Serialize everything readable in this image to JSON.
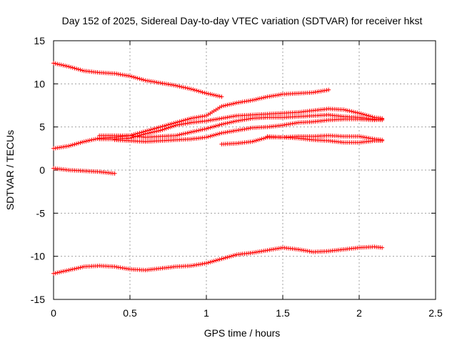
{
  "chart_data": {
    "type": "scatter",
    "title": "Day 152 of 2025, Sidereal Day-to-day VTEC variation (SDTVAR) for receiver hkst",
    "xlabel": "GPS time / hours",
    "ylabel": "SDTVAR / TECUs",
    "xlim": [
      0,
      2.5
    ],
    "ylim": [
      -15,
      15
    ],
    "xticks": [
      0,
      0.5,
      1,
      1.5,
      2,
      2.5
    ],
    "xtick_labels": [
      "0",
      "0.5",
      "1",
      "1.5",
      "2",
      "2.5"
    ],
    "yticks": [
      -15,
      -10,
      -5,
      0,
      5,
      10,
      15
    ],
    "ytick_labels": [
      "-15",
      "-10",
      "-5",
      "0",
      "5",
      "10",
      "15"
    ],
    "grid": true,
    "marker": "+",
    "color": "#ff0000",
    "series": [
      {
        "name": "track-1",
        "points": [
          [
            0,
            12.4
          ],
          [
            0.1,
            12.0
          ],
          [
            0.2,
            11.5
          ],
          [
            0.3,
            11.3
          ],
          [
            0.4,
            11.2
          ],
          [
            0.5,
            10.9
          ],
          [
            0.6,
            10.4
          ],
          [
            0.7,
            10.1
          ],
          [
            0.8,
            9.8
          ],
          [
            0.9,
            9.4
          ],
          [
            1.0,
            8.9
          ],
          [
            1.1,
            8.5
          ]
        ]
      },
      {
        "name": "track-2",
        "points": [
          [
            0,
            0.2
          ],
          [
            0.1,
            0.0
          ],
          [
            0.2,
            -0.1
          ],
          [
            0.3,
            -0.2
          ],
          [
            0.4,
            -0.4
          ]
        ]
      },
      {
        "name": "track-3",
        "points": [
          [
            0,
            -12.0
          ],
          [
            0.1,
            -11.6
          ],
          [
            0.2,
            -11.2
          ],
          [
            0.3,
            -11.1
          ],
          [
            0.4,
            -11.2
          ],
          [
            0.5,
            -11.5
          ],
          [
            0.6,
            -11.6
          ],
          [
            0.7,
            -11.4
          ],
          [
            0.8,
            -11.2
          ],
          [
            0.9,
            -11.1
          ],
          [
            1.0,
            -10.8
          ],
          [
            1.1,
            -10.3
          ],
          [
            1.2,
            -9.8
          ],
          [
            1.3,
            -9.6
          ],
          [
            1.4,
            -9.3
          ],
          [
            1.5,
            -9.0
          ],
          [
            1.6,
            -9.2
          ],
          [
            1.7,
            -9.5
          ],
          [
            1.8,
            -9.4
          ],
          [
            1.9,
            -9.2
          ],
          [
            2.0,
            -9.0
          ],
          [
            2.1,
            -8.9
          ],
          [
            2.15,
            -9.0
          ]
        ]
      },
      {
        "name": "track-4",
        "points": [
          [
            0,
            2.5
          ],
          [
            0.1,
            2.8
          ],
          [
            0.2,
            3.3
          ],
          [
            0.3,
            3.7
          ],
          [
            0.4,
            3.8
          ],
          [
            0.5,
            4.0
          ],
          [
            0.6,
            4.5
          ],
          [
            0.7,
            5.0
          ],
          [
            0.8,
            5.5
          ],
          [
            0.9,
            6.0
          ],
          [
            1.0,
            6.3
          ],
          [
            1.1,
            7.4
          ],
          [
            1.2,
            7.8
          ],
          [
            1.3,
            8.1
          ],
          [
            1.4,
            8.5
          ],
          [
            1.5,
            8.8
          ],
          [
            1.6,
            8.9
          ],
          [
            1.7,
            9.0
          ],
          [
            1.8,
            9.3
          ]
        ]
      },
      {
        "name": "track-5",
        "points": [
          [
            0.3,
            3.6
          ],
          [
            0.4,
            3.6
          ],
          [
            0.5,
            3.7
          ],
          [
            0.6,
            4.2
          ],
          [
            0.7,
            4.6
          ],
          [
            0.8,
            5.2
          ],
          [
            0.9,
            5.5
          ],
          [
            1.0,
            5.7
          ],
          [
            1.1,
            6.0
          ],
          [
            1.2,
            6.3
          ],
          [
            1.3,
            6.4
          ],
          [
            1.4,
            6.5
          ],
          [
            1.5,
            6.6
          ],
          [
            1.6,
            6.7
          ],
          [
            1.7,
            6.9
          ],
          [
            1.8,
            7.1
          ],
          [
            1.9,
            7.0
          ],
          [
            2.0,
            6.6
          ],
          [
            2.1,
            6.1
          ],
          [
            2.15,
            6.0
          ]
        ]
      },
      {
        "name": "track-6",
        "points": [
          [
            0.3,
            4.0
          ],
          [
            0.4,
            4.0
          ],
          [
            0.5,
            4.0
          ],
          [
            0.6,
            3.8
          ],
          [
            0.7,
            3.9
          ],
          [
            0.8,
            4.0
          ],
          [
            0.9,
            4.4
          ],
          [
            1.0,
            4.8
          ],
          [
            1.1,
            5.3
          ],
          [
            1.2,
            5.7
          ],
          [
            1.3,
            6.0
          ],
          [
            1.4,
            6.1
          ],
          [
            1.5,
            6.1
          ],
          [
            1.6,
            6.2
          ],
          [
            1.7,
            6.3
          ],
          [
            1.8,
            6.4
          ],
          [
            1.9,
            6.2
          ],
          [
            2.0,
            6.1
          ],
          [
            2.1,
            5.9
          ],
          [
            2.15,
            5.8
          ]
        ]
      },
      {
        "name": "track-7",
        "points": [
          [
            0.4,
            3.5
          ],
          [
            0.5,
            3.4
          ],
          [
            0.6,
            3.3
          ],
          [
            0.7,
            3.4
          ],
          [
            0.8,
            3.5
          ],
          [
            0.9,
            3.6
          ],
          [
            1.0,
            3.8
          ],
          [
            1.1,
            4.3
          ],
          [
            1.2,
            4.6
          ],
          [
            1.3,
            4.9
          ],
          [
            1.4,
            5.0
          ],
          [
            1.5,
            5.2
          ],
          [
            1.6,
            5.5
          ],
          [
            1.7,
            5.6
          ],
          [
            1.8,
            5.8
          ],
          [
            1.9,
            5.9
          ],
          [
            2.0,
            5.9
          ],
          [
            2.1,
            5.8
          ],
          [
            2.15,
            5.9
          ]
        ]
      },
      {
        "name": "track-8",
        "points": [
          [
            1.1,
            3.0
          ],
          [
            1.2,
            3.1
          ],
          [
            1.3,
            3.3
          ],
          [
            1.4,
            3.8
          ],
          [
            1.5,
            3.8
          ],
          [
            1.6,
            3.9
          ],
          [
            1.7,
            3.9
          ],
          [
            1.8,
            4.0
          ],
          [
            1.9,
            3.9
          ],
          [
            2.0,
            3.9
          ],
          [
            2.1,
            3.6
          ],
          [
            2.15,
            3.5
          ]
        ]
      },
      {
        "name": "track-9",
        "points": [
          [
            1.4,
            3.9
          ],
          [
            1.5,
            3.8
          ],
          [
            1.6,
            3.7
          ],
          [
            1.7,
            3.5
          ],
          [
            1.8,
            3.4
          ],
          [
            1.9,
            3.2
          ],
          [
            2.0,
            3.2
          ],
          [
            2.1,
            3.4
          ],
          [
            2.15,
            3.4
          ]
        ]
      }
    ]
  }
}
